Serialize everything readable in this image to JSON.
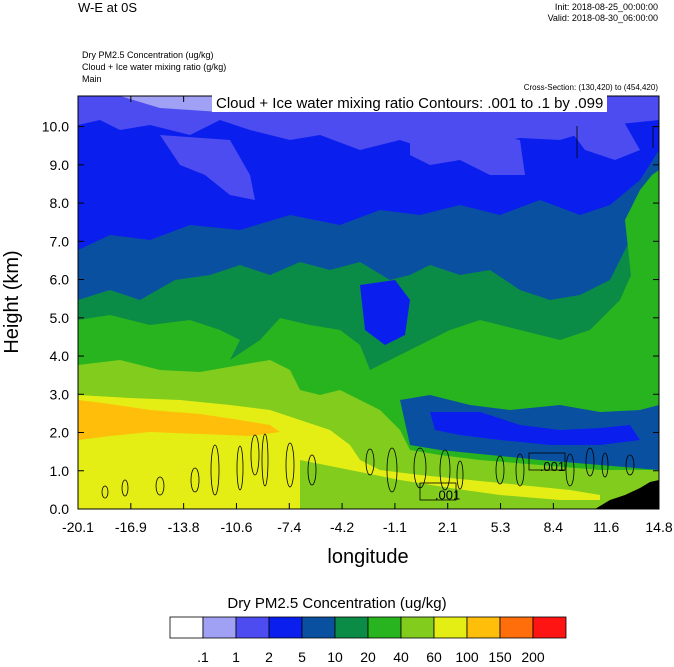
{
  "header": {
    "title": "W-E at 0S",
    "init": "Init: 2018-08-25_00:00:00",
    "valid": "Valid: 2018-08-30_06:00:00",
    "field1": "Dry PM2.5 Concentration   (ug/kg)",
    "field2": "Cloud + Ice water mixing ratio   (g/kg)",
    "field3": "Main",
    "cross_section": "Cross-Section: (130,420) to (454,420)"
  },
  "chart_data": {
    "type": "heatmap",
    "title": "Cloud + Ice water mixing ratio Contours: .001 to .1 by .099",
    "xlabel": "longitude",
    "ylabel": "Height (km)",
    "xlim": [
      -20.1,
      14.8
    ],
    "ylim": [
      0.0,
      10.8
    ],
    "x_ticks": [
      "-20.1",
      "-16.9",
      "-13.8",
      "-10.6",
      "-7.4",
      "-4.2",
      "-1.1",
      "2.1",
      "5.3",
      "8.4",
      "11.6",
      "14.8"
    ],
    "y_ticks": [
      "0.0",
      "1.0",
      "2.0",
      "3.0",
      "4.0",
      "5.0",
      "6.0",
      "7.0",
      "8.0",
      "9.0",
      "10.0"
    ],
    "contour_labels": [
      {
        "text": ".001",
        "x": 2.1,
        "y": 0.4
      },
      {
        "text": ".001",
        "x": 8.4,
        "y": 1.15
      }
    ],
    "colorbar": {
      "title": "Dry PM2.5 Concentration  (ug/kg)",
      "labels": [
        ".1",
        "1",
        "2",
        "5",
        "10",
        "20",
        "40",
        "60",
        "100",
        "150",
        "200"
      ],
      "colors": [
        "#ffffff",
        "#a0a0f4",
        "#4c4cf0",
        "#0a1eee",
        "#0a50a0",
        "#0a8c46",
        "#28b41e",
        "#82cc1e",
        "#e4ee14",
        "#ffbe0a",
        "#ff6e0a",
        "#ff1414"
      ]
    }
  }
}
